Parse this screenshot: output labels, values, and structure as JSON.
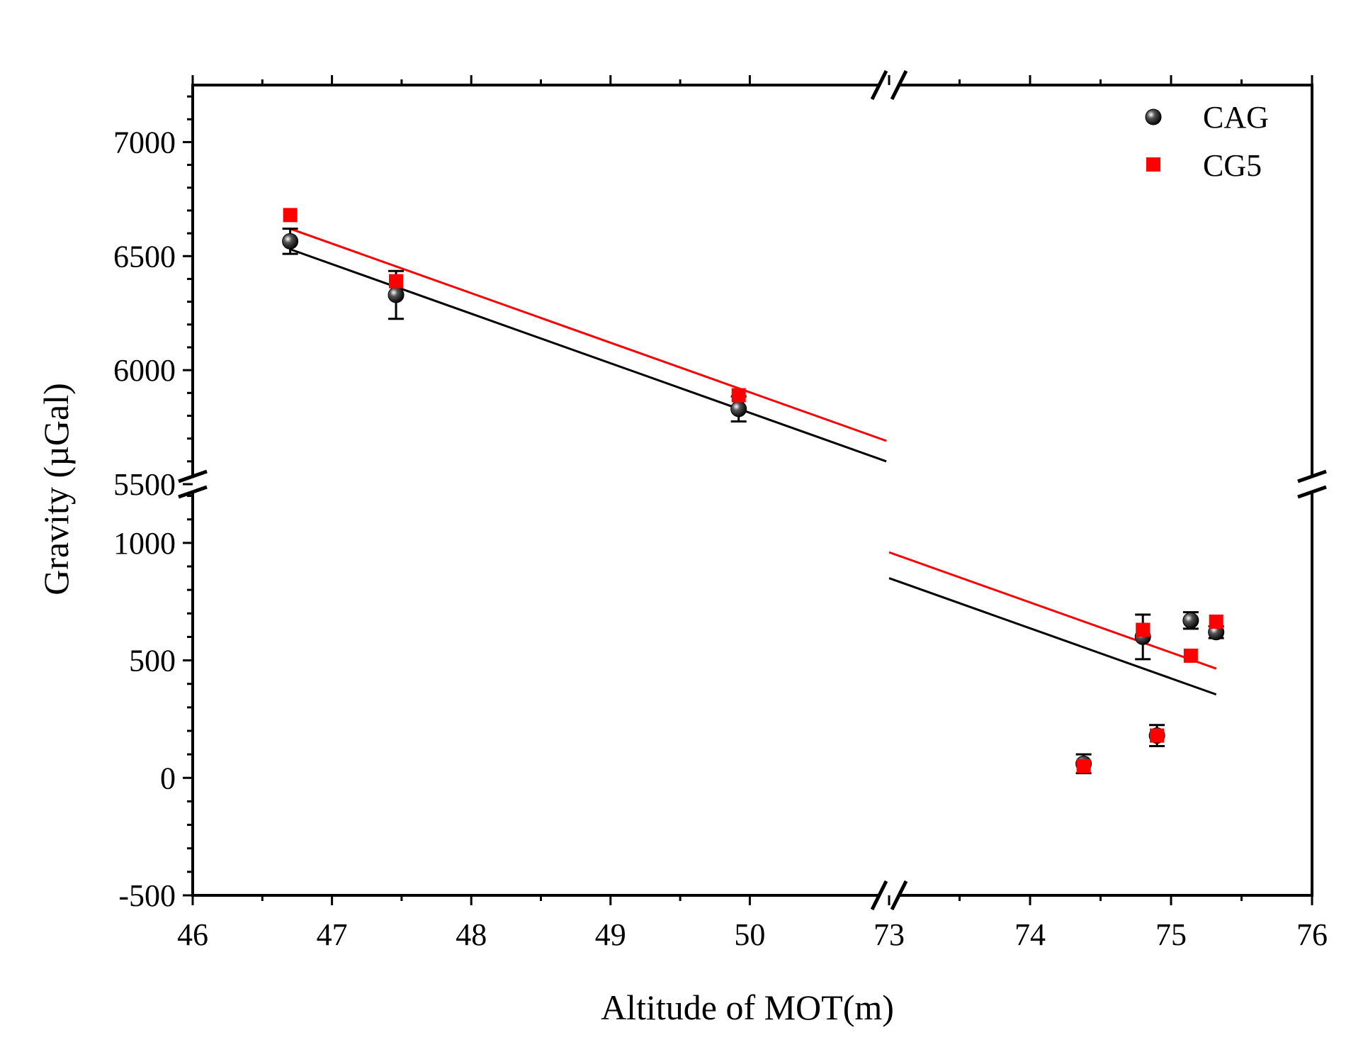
{
  "chart_data": {
    "type": "scatter",
    "title": "",
    "xlabel": "Altitude of MOT(m)",
    "ylabel": "Gravity (µGal)",
    "x_segments": [
      {
        "range": [
          46,
          51
        ],
        "ticks": [
          46,
          47,
          48,
          49,
          50
        ]
      },
      {
        "range": [
          73,
          76
        ],
        "ticks": [
          73,
          74,
          75,
          76
        ]
      }
    ],
    "y_segments": [
      {
        "range": [
          -500,
          1250
        ],
        "ticks": [
          -500,
          0,
          500,
          1000
        ]
      },
      {
        "range": [
          5500,
          7250
        ],
        "ticks": [
          5500,
          6000,
          6500,
          7000
        ]
      }
    ],
    "legend": {
      "position": "top-right",
      "entries": [
        "CAG",
        "CG5"
      ]
    },
    "series": [
      {
        "name": "CAG",
        "color": "#000000",
        "marker": "circle",
        "points": [
          {
            "x": 46.7,
            "y": 6565,
            "err": 55
          },
          {
            "x": 47.46,
            "y": 6330,
            "err": 105
          },
          {
            "x": 49.92,
            "y": 5830,
            "err": 55
          },
          {
            "x": 74.38,
            "y": 60,
            "err": 40
          },
          {
            "x": 74.8,
            "y": 600,
            "err": 95
          },
          {
            "x": 74.9,
            "y": 180,
            "err": 45
          },
          {
            "x": 75.14,
            "y": 670,
            "err": 35
          },
          {
            "x": 75.32,
            "y": 620,
            "err": 25
          }
        ],
        "fit_segments": [
          {
            "x": [
              46.7,
              50.98
            ],
            "y": [
              6530,
              5600
            ]
          },
          {
            "x": [
              73.0,
              75.32
            ],
            "y": [
              850,
              355
            ]
          }
        ]
      },
      {
        "name": "CG5",
        "color": "#ff0000",
        "marker": "square",
        "points": [
          {
            "x": 46.7,
            "y": 6680
          },
          {
            "x": 47.46,
            "y": 6390
          },
          {
            "x": 49.92,
            "y": 5890
          },
          {
            "x": 74.38,
            "y": 50
          },
          {
            "x": 74.8,
            "y": 630
          },
          {
            "x": 74.9,
            "y": 180
          },
          {
            "x": 75.14,
            "y": 520
          },
          {
            "x": 75.32,
            "y": 665
          }
        ],
        "fit_segments": [
          {
            "x": [
              46.7,
              50.98
            ],
            "y": [
              6620,
              5690
            ]
          },
          {
            "x": [
              73.0,
              75.32
            ],
            "y": [
              960,
              465
            ]
          }
        ]
      }
    ]
  }
}
